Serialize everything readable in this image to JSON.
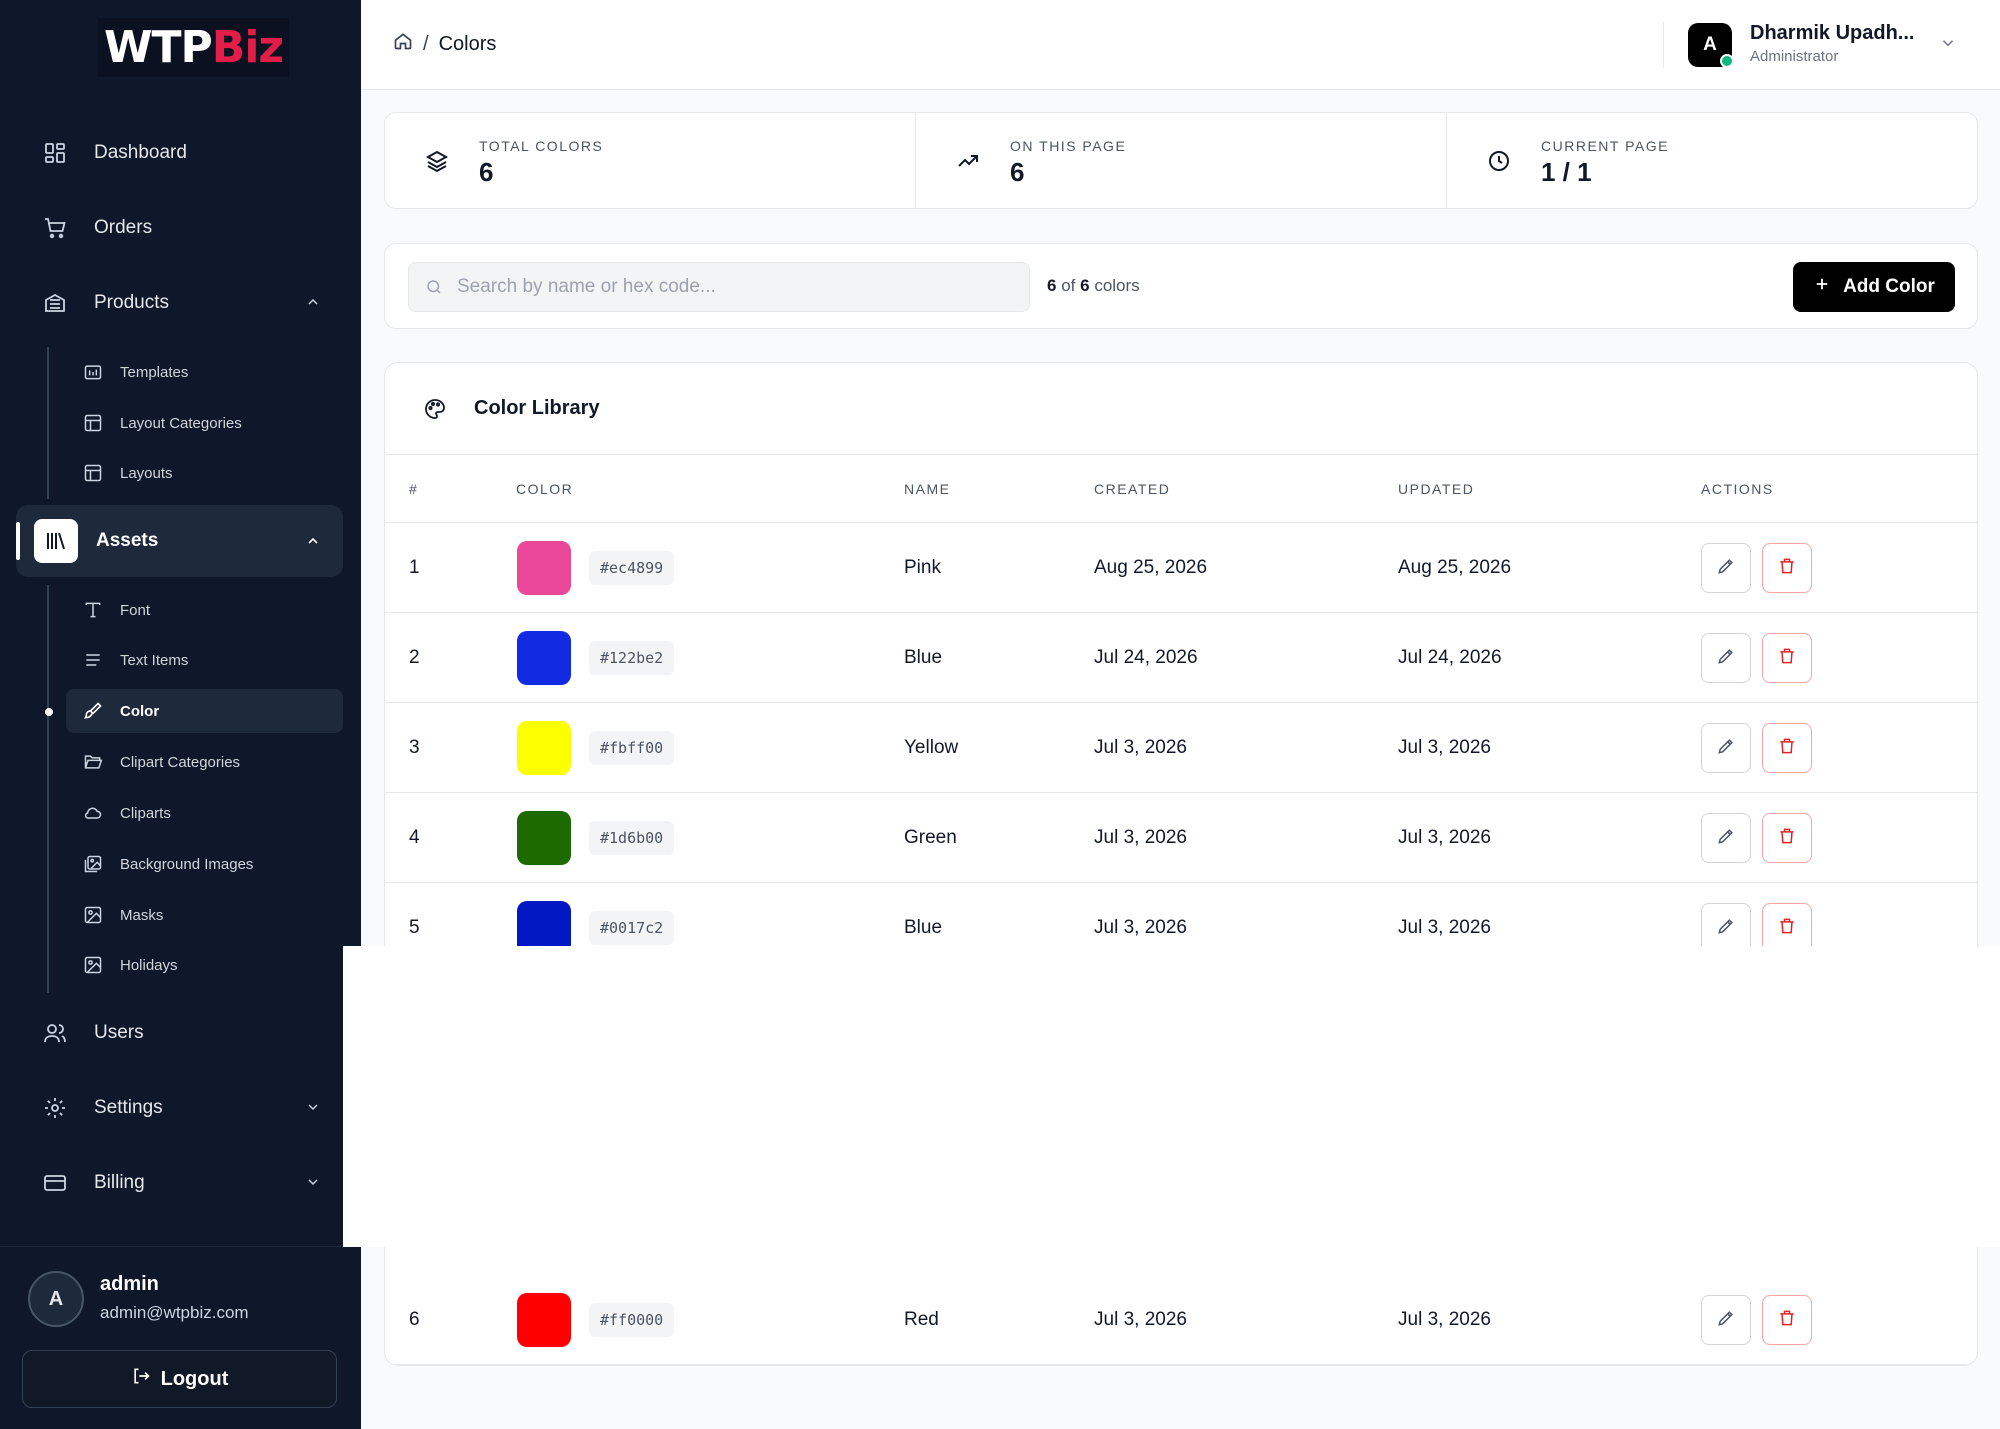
{
  "brand": {
    "logo_part1": "WTP",
    "logo_part2": "Biz"
  },
  "sidebar": {
    "nav": {
      "dashboard": "Dashboard",
      "orders": "Orders",
      "products": "Products",
      "assets": "Assets",
      "users": "Users",
      "settings": "Settings",
      "billing": "Billing"
    },
    "products_children": [
      "Templates",
      "Layout Categories",
      "Layouts"
    ],
    "assets_children": [
      "Font",
      "Text Items",
      "Color",
      "Clipart Categories",
      "Cliparts",
      "Background Images",
      "Masks",
      "Holidays"
    ],
    "footer": {
      "avatar_letter": "A",
      "name": "admin",
      "email": "admin@wtpbiz.com",
      "logout_label": "Logout"
    }
  },
  "header": {
    "breadcrumb_current": "Colors",
    "breadcrumb_sep": "/",
    "user": {
      "avatar_letter": "A",
      "name": "Dharmik Upadh...",
      "role": "Administrator"
    }
  },
  "stats": [
    {
      "label": "TOTAL COLORS",
      "value": "6"
    },
    {
      "label": "ON THIS PAGE",
      "value": "6"
    },
    {
      "label": "CURRENT PAGE",
      "value": "1 / 1"
    }
  ],
  "toolbar": {
    "search_placeholder": "Search by name or hex code...",
    "count_shown": "6",
    "count_of": "of",
    "count_total": "6",
    "count_suffix": "colors",
    "add_label": "Add Color"
  },
  "library": {
    "title": "Color Library",
    "columns": [
      "#",
      "COLOR",
      "NAME",
      "CREATED",
      "UPDATED",
      "ACTIONS"
    ],
    "rows": [
      {
        "num": "1",
        "hex": "#ec4899",
        "swatch": "#ec4899",
        "name": "Pink",
        "created": "Aug 25, 2026",
        "updated": "Aug 25, 2026"
      },
      {
        "num": "2",
        "hex": "#122be2",
        "swatch": "#122be2",
        "name": "Blue",
        "created": "Jul 24, 2026",
        "updated": "Jul 24, 2026"
      },
      {
        "num": "3",
        "hex": "#fbff00",
        "swatch": "#fbff00",
        "name": "Yellow",
        "created": "Jul 3, 2026",
        "updated": "Jul 3, 2026"
      },
      {
        "num": "4",
        "hex": "#1d6b00",
        "swatch": "#1d6b00",
        "name": "Green",
        "created": "Jul 3, 2026",
        "updated": "Jul 3, 2026"
      },
      {
        "num": "5",
        "hex": "#0017c2",
        "swatch": "#0017c2",
        "name": "Blue",
        "created": "Jul 3, 2026",
        "updated": "Jul 3, 2026"
      },
      {
        "num": "6",
        "hex": "#ff0000",
        "swatch": "#ff0000",
        "name": "Red",
        "created": "Jul 3, 2026",
        "updated": "Jul 3, 2026"
      }
    ]
  },
  "colors": {
    "sidebar_bg": "#0f172a",
    "accent": "#e11d48",
    "delete": "#dc2626",
    "online": "#10b981"
  }
}
